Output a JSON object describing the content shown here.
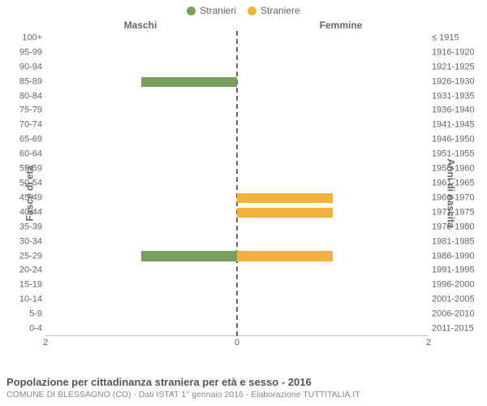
{
  "legend": {
    "male": {
      "label": "Stranieri",
      "color": "#7a9e5b"
    },
    "female": {
      "label": "Straniere",
      "color": "#f2b33d"
    }
  },
  "titles": {
    "left": "Maschi",
    "right": "Femmine"
  },
  "axes": {
    "left_label": "Fasce di età",
    "right_label": "Anni di nascita",
    "xmax": 2,
    "x_ticks": {
      "leftOuter": "2",
      "center": "0",
      "rightOuter": "2"
    }
  },
  "rows": [
    {
      "age": "100+",
      "birth": "≤ 1915",
      "m": 0,
      "f": 0
    },
    {
      "age": "95-99",
      "birth": "1916-1920",
      "m": 0,
      "f": 0
    },
    {
      "age": "90-94",
      "birth": "1921-1925",
      "m": 0,
      "f": 0
    },
    {
      "age": "85-89",
      "birth": "1926-1930",
      "m": 1,
      "f": 0
    },
    {
      "age": "80-84",
      "birth": "1931-1935",
      "m": 0,
      "f": 0
    },
    {
      "age": "75-79",
      "birth": "1936-1940",
      "m": 0,
      "f": 0
    },
    {
      "age": "70-74",
      "birth": "1941-1945",
      "m": 0,
      "f": 0
    },
    {
      "age": "65-69",
      "birth": "1946-1950",
      "m": 0,
      "f": 0
    },
    {
      "age": "60-64",
      "birth": "1951-1955",
      "m": 0,
      "f": 0
    },
    {
      "age": "55-59",
      "birth": "1956-1960",
      "m": 0,
      "f": 0
    },
    {
      "age": "50-54",
      "birth": "1961-1965",
      "m": 0,
      "f": 0
    },
    {
      "age": "45-49",
      "birth": "1966-1970",
      "m": 0,
      "f": 1
    },
    {
      "age": "40-44",
      "birth": "1971-1975",
      "m": 0,
      "f": 1
    },
    {
      "age": "35-39",
      "birth": "1976-1980",
      "m": 0,
      "f": 0
    },
    {
      "age": "30-34",
      "birth": "1981-1985",
      "m": 0,
      "f": 0
    },
    {
      "age": "25-29",
      "birth": "1986-1990",
      "m": 1,
      "f": 1
    },
    {
      "age": "20-24",
      "birth": "1991-1995",
      "m": 0,
      "f": 0
    },
    {
      "age": "15-19",
      "birth": "1996-2000",
      "m": 0,
      "f": 0
    },
    {
      "age": "10-14",
      "birth": "2001-2005",
      "m": 0,
      "f": 0
    },
    {
      "age": "5-9",
      "birth": "2006-2010",
      "m": 0,
      "f": 0
    },
    {
      "age": "0-4",
      "birth": "2011-2015",
      "m": 0,
      "f": 0
    }
  ],
  "style": {
    "male_color": "#7a9e5b",
    "female_color": "#f2b33d",
    "grid_color": "#bfbfbf",
    "centerline_color": "#666666",
    "background": "#ffffff"
  },
  "footer": {
    "title": "Popolazione per cittadinanza straniera per età e sesso - 2016",
    "subtitle": "COMUNE DI BLESSAGNO (CO) - Dati ISTAT 1° gennaio 2016 - Elaborazione TUTTITALIA.IT"
  }
}
